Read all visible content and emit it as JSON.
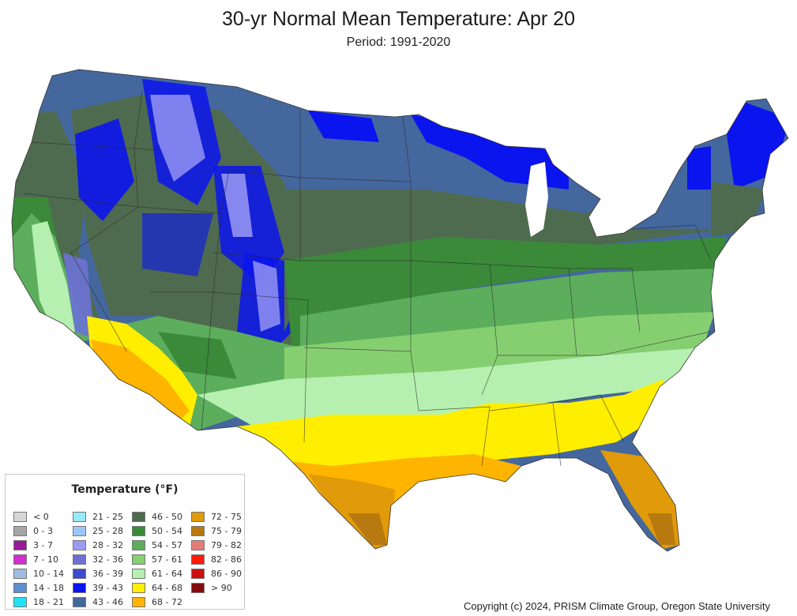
{
  "header": {
    "title": "30-yr Normal Mean Temperature: Apr 20",
    "subtitle": "Period: 1991-2020"
  },
  "legend": {
    "title": "Temperature (°F)",
    "items": [
      {
        "label": "< 0",
        "color": "#d6d6d6"
      },
      {
        "label": "0 - 3",
        "color": "#a6a6a6"
      },
      {
        "label": "3 - 7",
        "color": "#991b99"
      },
      {
        "label": "7 - 10",
        "color": "#d22ed2"
      },
      {
        "label": "10 - 14",
        "color": "#9ebde0"
      },
      {
        "label": "14 - 18",
        "color": "#5b8fd0"
      },
      {
        "label": "18 - 21",
        "color": "#22e2f5"
      },
      {
        "label": "21 - 25",
        "color": "#96eafa"
      },
      {
        "label": "25 - 28",
        "color": "#9ec6f7"
      },
      {
        "label": "28 - 32",
        "color": "#9a9af5"
      },
      {
        "label": "32 - 36",
        "color": "#6b72d6"
      },
      {
        "label": "36 - 39",
        "color": "#3e4ccf"
      },
      {
        "label": "39 - 43",
        "color": "#0a14ee"
      },
      {
        "label": "43 - 46",
        "color": "#44679e"
      },
      {
        "label": "46 - 50",
        "color": "#4f6b4f"
      },
      {
        "label": "50 - 54",
        "color": "#3a8a3a"
      },
      {
        "label": "54 - 57",
        "color": "#5cae5c"
      },
      {
        "label": "57 - 61",
        "color": "#86cf70"
      },
      {
        "label": "61 - 64",
        "color": "#b5f0b0"
      },
      {
        "label": "64 - 68",
        "color": "#ffee00"
      },
      {
        "label": "68 - 72",
        "color": "#ffb400"
      },
      {
        "label": "72 - 75",
        "color": "#e09a0a"
      },
      {
        "label": "75 - 79",
        "color": "#b87a10"
      },
      {
        "label": "79 - 82",
        "color": "#e27d78"
      },
      {
        "label": "82 - 86",
        "color": "#ff1a0a"
      },
      {
        "label": "86 - 90",
        "color": "#cc1010"
      },
      {
        "label": "> 90",
        "color": "#840c0c"
      }
    ]
  },
  "footer": {
    "copyright": "Copyright (c) 2024, PRISM Climate Group, Oregon State University"
  }
}
